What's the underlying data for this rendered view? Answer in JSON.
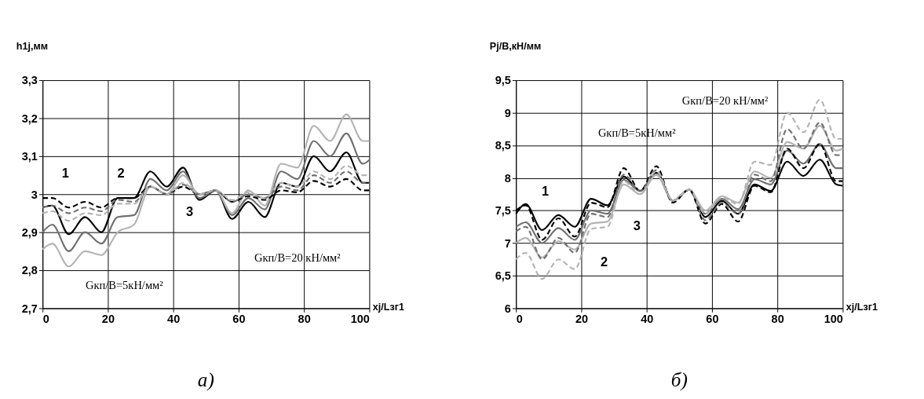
{
  "chart_data": [
    {
      "type": "line",
      "title": "а)",
      "xlabel": "xj/Lзг1",
      "ylabel": "h1j,мм",
      "xlim": [
        0,
        100
      ],
      "xticks": [
        0,
        20,
        40,
        60,
        80,
        100
      ],
      "ylim": [
        2.7,
        3.3
      ],
      "yticks": [
        {
          "value": 2.7,
          "label": "2,7"
        },
        {
          "value": 2.8,
          "label": "2,8"
        },
        {
          "value": 2.9,
          "label": "2,9"
        },
        {
          "value": 3.0,
          "label": "3"
        },
        {
          "value": 3.1,
          "label": "3,1"
        },
        {
          "value": 3.2,
          "label": "3,2"
        },
        {
          "value": 3.3,
          "label": "3,3"
        }
      ],
      "grid": true,
      "marker": "none",
      "x": [
        0,
        3,
        8,
        13,
        18,
        23,
        28,
        33,
        38,
        43,
        48,
        53,
        58,
        63,
        68,
        73,
        78,
        83,
        88,
        93,
        98,
        100
      ],
      "series": [
        {
          "color": "#000000",
          "line_style": "solid",
          "values": [
            2.965,
            2.97,
            2.895,
            2.94,
            2.9,
            2.99,
            2.99,
            3.06,
            3.02,
            3.07,
            2.985,
            3.01,
            2.935,
            2.98,
            2.94,
            3.03,
            3.02,
            3.1,
            3.06,
            3.11,
            3.03,
            3.03
          ]
        },
        {
          "color": "#707070",
          "line_style": "solid",
          "values": [
            2.9,
            2.92,
            2.85,
            2.9,
            2.87,
            2.94,
            2.945,
            3.04,
            3.01,
            3.06,
            2.99,
            3.01,
            2.945,
            2.99,
            2.96,
            3.06,
            3.04,
            3.14,
            3.1,
            3.16,
            3.08,
            3.09
          ]
        },
        {
          "color": "#b4b4b4",
          "line_style": "solid",
          "values": [
            2.855,
            2.87,
            2.81,
            2.85,
            2.84,
            2.9,
            2.92,
            3.02,
            3.0,
            3.05,
            3.0,
            3.01,
            2.95,
            3.01,
            2.97,
            3.08,
            3.07,
            3.18,
            3.14,
            3.21,
            3.14,
            3.14
          ]
        },
        {
          "color": "#000000",
          "line_style": "dashed",
          "values": [
            2.99,
            2.99,
            2.965,
            2.98,
            2.965,
            2.99,
            2.99,
            3.02,
            3.0,
            3.02,
            3.0,
            3.01,
            2.98,
            2.995,
            2.985,
            3.01,
            3.005,
            3.035,
            3.02,
            3.04,
            3.01,
            3.01
          ]
        },
        {
          "color": "#707070",
          "line_style": "dashed",
          "values": [
            2.965,
            2.97,
            2.95,
            2.965,
            2.955,
            2.985,
            2.98,
            3.02,
            3.0,
            3.025,
            3.0,
            3.01,
            2.98,
            3.0,
            2.99,
            3.02,
            3.01,
            3.05,
            3.03,
            3.06,
            3.03,
            3.03
          ]
        },
        {
          "color": "#b4b4b4",
          "line_style": "dashed",
          "values": [
            2.95,
            2.955,
            2.93,
            2.95,
            2.945,
            2.975,
            2.975,
            3.02,
            3.0,
            3.03,
            3.0,
            3.01,
            2.985,
            3.005,
            2.99,
            3.03,
            3.02,
            3.06,
            3.04,
            3.075,
            3.05,
            3.05
          ]
        }
      ],
      "annotations": [
        "1",
        "2",
        "3",
        "Gкп/B=5кН/мм²",
        "Gкп/B=20 кН/мм²"
      ]
    },
    {
      "type": "line",
      "title": "б)",
      "xlabel": "xj/Lзг1",
      "ylabel": "Pj/B,кН/мм",
      "xlim": [
        0,
        100
      ],
      "xticks": [
        0,
        20,
        40,
        60,
        80,
        100
      ],
      "ylim": [
        6,
        9.5
      ],
      "yticks": [
        6,
        {
          "value": 6.5,
          "label": "6,5"
        },
        7,
        {
          "value": 7.5,
          "label": "7,5"
        },
        8,
        {
          "value": 8.5,
          "label": "8,5"
        },
        9,
        {
          "value": 9.5,
          "label": "9,5"
        }
      ],
      "grid": true,
      "marker": "none",
      "x": [
        0,
        3,
        8,
        13,
        18,
        23,
        28,
        33,
        38,
        43,
        48,
        53,
        58,
        63,
        68,
        73,
        78,
        83,
        88,
        93,
        98,
        100
      ],
      "series": [
        {
          "color": "#000000",
          "line_style": "solid",
          "values": [
            7.45,
            7.6,
            7.2,
            7.43,
            7.25,
            7.68,
            7.58,
            8.02,
            7.8,
            8.08,
            7.65,
            7.82,
            7.4,
            7.65,
            7.45,
            7.9,
            7.8,
            8.25,
            8.03,
            8.28,
            7.9,
            7.88
          ]
        },
        {
          "color": "#707070",
          "line_style": "solid",
          "values": [
            7.25,
            7.32,
            7.0,
            7.23,
            7.05,
            7.5,
            7.45,
            7.97,
            7.8,
            8.05,
            7.65,
            7.82,
            7.45,
            7.68,
            7.52,
            7.98,
            7.9,
            8.42,
            8.22,
            8.52,
            8.15,
            8.15
          ]
        },
        {
          "color": "#b4b4b4",
          "line_style": "solid",
          "values": [
            7.0,
            7.08,
            6.78,
            7.03,
            6.9,
            7.3,
            7.33,
            7.9,
            7.75,
            8.05,
            7.65,
            7.82,
            7.5,
            7.72,
            7.62,
            8.1,
            8.0,
            8.55,
            8.45,
            8.8,
            8.42,
            8.45
          ]
        },
        {
          "color": "#000000",
          "line_style": "dashed",
          "values": [
            7.5,
            7.58,
            7.05,
            7.38,
            7.1,
            7.62,
            7.55,
            8.15,
            7.8,
            8.18,
            7.62,
            7.82,
            7.3,
            7.6,
            7.33,
            7.88,
            7.78,
            8.45,
            8.15,
            8.52,
            7.95,
            7.95
          ]
        },
        {
          "color": "#707070",
          "line_style": "dashed",
          "values": [
            7.18,
            7.25,
            6.75,
            7.08,
            6.85,
            7.45,
            7.4,
            8.05,
            7.8,
            8.12,
            7.65,
            7.82,
            7.35,
            7.62,
            7.45,
            8.05,
            7.95,
            8.75,
            8.45,
            8.85,
            8.35,
            8.35
          ]
        },
        {
          "color": "#b4b4b4",
          "line_style": "dashed",
          "values": [
            6.75,
            6.85,
            6.45,
            6.75,
            6.6,
            7.22,
            7.25,
            7.95,
            7.75,
            8.1,
            7.65,
            7.82,
            7.45,
            7.7,
            7.6,
            8.25,
            8.2,
            9.0,
            8.7,
            9.2,
            8.6,
            8.6
          ]
        }
      ],
      "annotations": [
        "1",
        "2",
        "3",
        "Gкп/B=5кН/мм²",
        "Gкп/B=20 кН/мм²"
      ]
    }
  ]
}
